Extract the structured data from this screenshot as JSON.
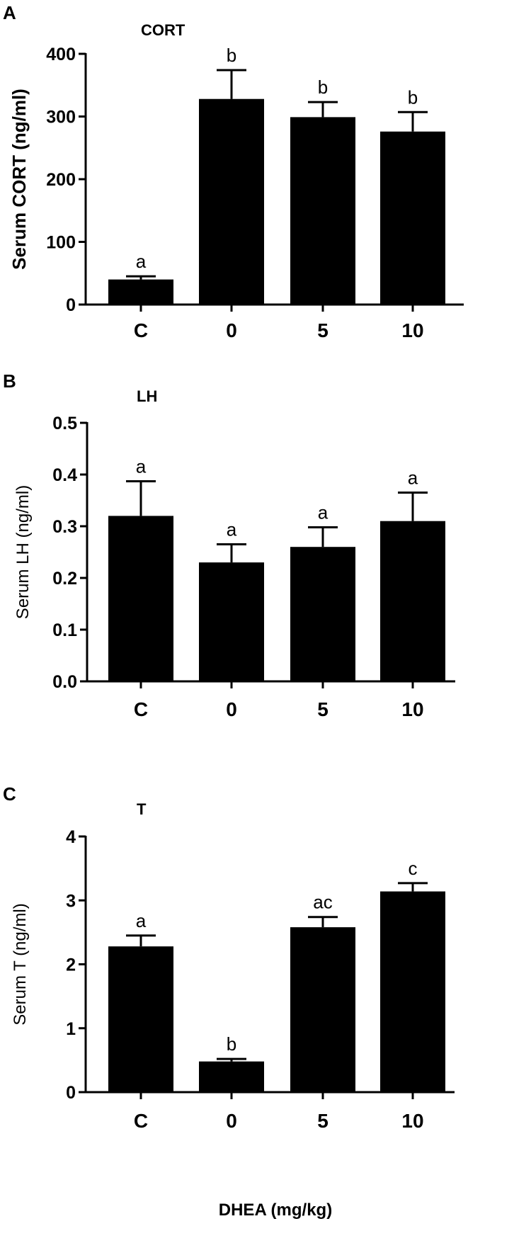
{
  "chart_data": [
    {
      "panel": "A",
      "type": "bar",
      "title": "CORT",
      "ylabel": "Serum CORT  (ng/ml)",
      "categories": [
        "C",
        "0",
        "5",
        "10"
      ],
      "values": [
        40,
        328,
        299,
        276
      ],
      "errors": [
        5,
        46,
        24,
        31
      ],
      "significance": [
        "a",
        "b",
        "b",
        "b"
      ],
      "ylim": [
        0,
        400
      ],
      "yticks": [
        0,
        100,
        200,
        300,
        400
      ],
      "ytick_labels": [
        "0",
        "100",
        "200",
        "300",
        "400"
      ],
      "grid": false
    },
    {
      "panel": "B",
      "type": "bar",
      "title": "LH",
      "ylabel": "Serum LH (ng/ml)",
      "categories": [
        "C",
        "0",
        "5",
        "10"
      ],
      "values": [
        0.32,
        0.23,
        0.26,
        0.31
      ],
      "errors": [
        0.067,
        0.035,
        0.038,
        0.055
      ],
      "significance": [
        "a",
        "a",
        "a",
        "a"
      ],
      "ylim": [
        0,
        0.5
      ],
      "yticks": [
        0,
        0.1,
        0.2,
        0.3,
        0.4,
        0.5
      ],
      "ytick_labels": [
        "0.0",
        "0.1",
        "0.2",
        "0.3",
        "0.4",
        "0.5"
      ],
      "grid": false
    },
    {
      "panel": "C",
      "type": "bar",
      "title": "T",
      "ylabel": "Serum  T  (ng/ml)",
      "xlabel": "DHEA (mg/kg)",
      "categories": [
        "C",
        "0",
        "5",
        "10"
      ],
      "values": [
        2.28,
        0.48,
        2.58,
        3.14
      ],
      "errors": [
        0.17,
        0.04,
        0.16,
        0.13
      ],
      "significance": [
        "a",
        "b",
        "ac",
        "c"
      ],
      "ylim": [
        0,
        4
      ],
      "yticks": [
        0,
        1,
        2,
        3,
        4
      ],
      "ytick_labels": [
        "0",
        "1",
        "2",
        "3",
        "4"
      ],
      "grid": false
    }
  ]
}
